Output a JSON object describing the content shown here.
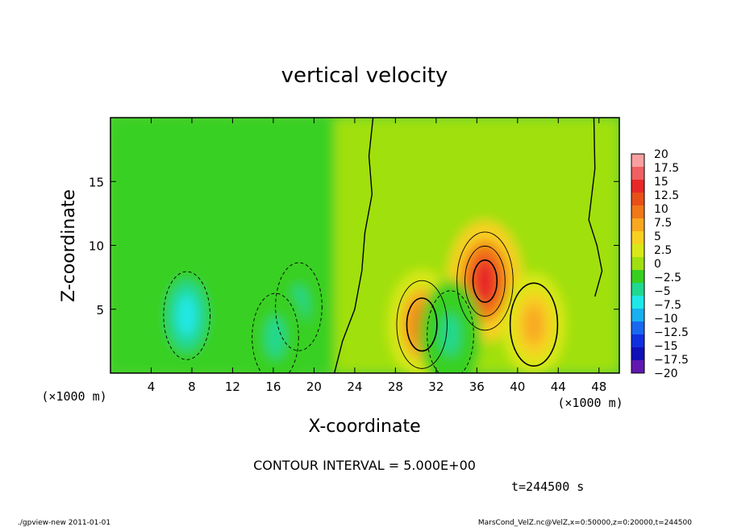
{
  "chart_data": {
    "type": "heatmap",
    "title": "vertical velocity",
    "xlabel": "X-coordinate",
    "ylabel": "Z-coordinate",
    "x_unit": "(×1000 m)",
    "y_unit": "(×1000 m)",
    "xlim": [
      0,
      50
    ],
    "ylim": [
      0,
      20
    ],
    "x_ticks": [
      4,
      8,
      12,
      16,
      20,
      24,
      28,
      32,
      36,
      40,
      44,
      48
    ],
    "y_ticks": [
      5,
      10,
      15
    ],
    "contour_interval_text": "CONTOUR INTERVAL = 5.000E+00",
    "time_text": "t=244500 s",
    "colorbar": {
      "labels": [
        "20",
        "17.5",
        "15",
        "12.5",
        "10",
        "7.5",
        "5",
        "2.5",
        "0",
        "−2.5",
        "−5",
        "−7.5",
        "−10",
        "−12.5",
        "−15",
        "−17.5",
        "−20"
      ],
      "colors": [
        "#f8a0a0",
        "#f06060",
        "#e82828",
        "#e85018",
        "#f07818",
        "#f8a820",
        "#f8d020",
        "#d8e818",
        "#a0e010",
        "#38d020",
        "#20d890",
        "#20e8e8",
        "#18b0f0",
        "#1868f0",
        "#1030e0",
        "#1010b8",
        "#6018b0"
      ]
    },
    "features": [
      {
        "kind": "updraft",
        "x": 36.8,
        "z": 7.2,
        "peak": 15
      },
      {
        "kind": "updraft",
        "x": 30.6,
        "z": 3.8,
        "peak": 10
      },
      {
        "kind": "updraft",
        "x": 41.6,
        "z": 3.8,
        "peak": 7.5
      },
      {
        "kind": "downdraft",
        "x": 7.5,
        "z": 4.5,
        "peak": -7.5
      },
      {
        "kind": "downdraft",
        "x": 18.5,
        "z": 5.2,
        "peak": -5
      },
      {
        "kind": "downdraft",
        "x": 16.2,
        "z": 2.8,
        "peak": -5
      },
      {
        "kind": "downdraft",
        "x": 33.4,
        "z": 3.0,
        "peak": -5
      }
    ]
  },
  "footer": {
    "left": "./gpview-new  2011-01-01",
    "right": "MarsCond_VelZ.nc@VelZ,x=0:50000,z=0:20000,t=244500"
  }
}
